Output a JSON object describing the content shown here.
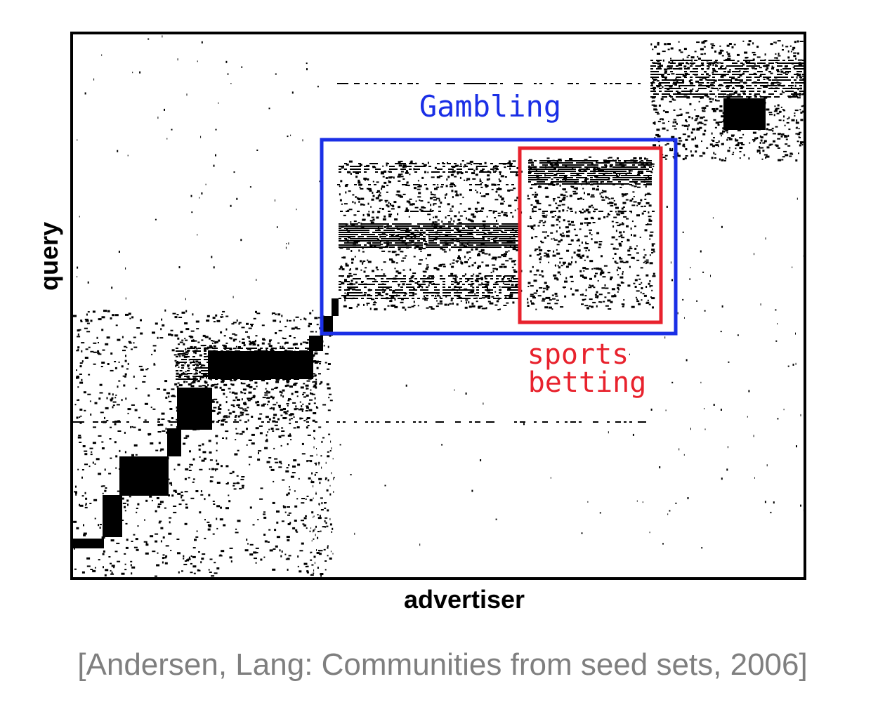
{
  "chart_data": {
    "type": "heatmap",
    "description_values": "sparse binary matrix: black dot = query/advertiser pair present",
    "xlabel": "advertiser",
    "ylabel": "query",
    "grid": false,
    "legend": "none",
    "annotations": [
      {
        "label": "Gambling",
        "color": "#1a2fe6"
      },
      {
        "label_lines": [
          "sports",
          "betting"
        ],
        "color": "#e8222d"
      }
    ]
  },
  "citation": "[Andersen, Lang: Communities from seed sets, 2006]"
}
